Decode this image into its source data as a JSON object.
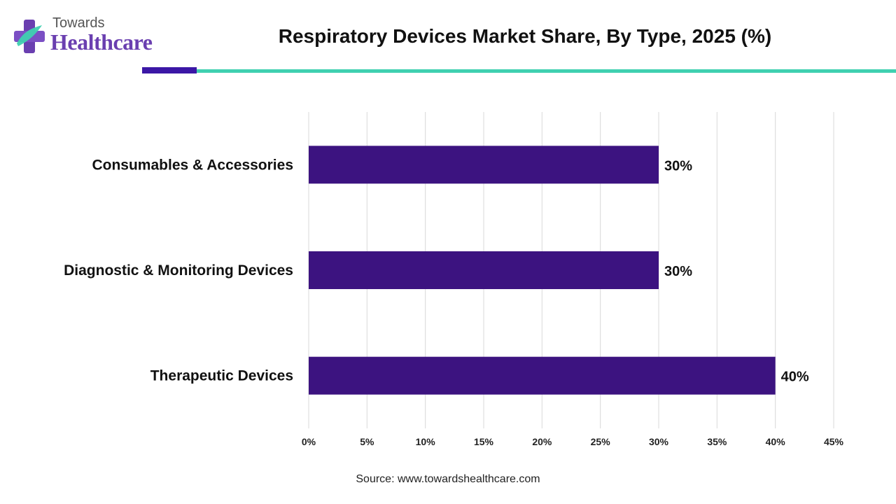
{
  "brand": {
    "line1": "Towards",
    "line2": "Healthcare",
    "colors": {
      "purple": "#6a3fb0",
      "teal": "#3fd0b0",
      "dark_purple": "#3b17a6"
    }
  },
  "footer": {
    "source": "Source: www.towardshealthcare.com"
  },
  "chart_data": {
    "type": "bar",
    "orientation": "horizontal",
    "title": "Respiratory Devices Market Share, By Type, 2025 (%)",
    "categories": [
      "Consumables & Accessories",
      "Diagnostic & Monitoring Devices",
      "Therapeutic Devices"
    ],
    "values": [
      30,
      30,
      40
    ],
    "data_labels": [
      "30%",
      "30%",
      "40%"
    ],
    "xlim": [
      0,
      45
    ],
    "x_ticks": [
      0,
      5,
      10,
      15,
      20,
      25,
      30,
      35,
      40,
      45
    ],
    "x_tick_labels": [
      "0%",
      "5%",
      "10%",
      "15%",
      "20%",
      "25%",
      "30%",
      "35%",
      "40%",
      "45%"
    ],
    "xlabel": "",
    "ylabel": "",
    "grid": "vertical",
    "legend": "none",
    "bar_color": "#3c1380"
  }
}
